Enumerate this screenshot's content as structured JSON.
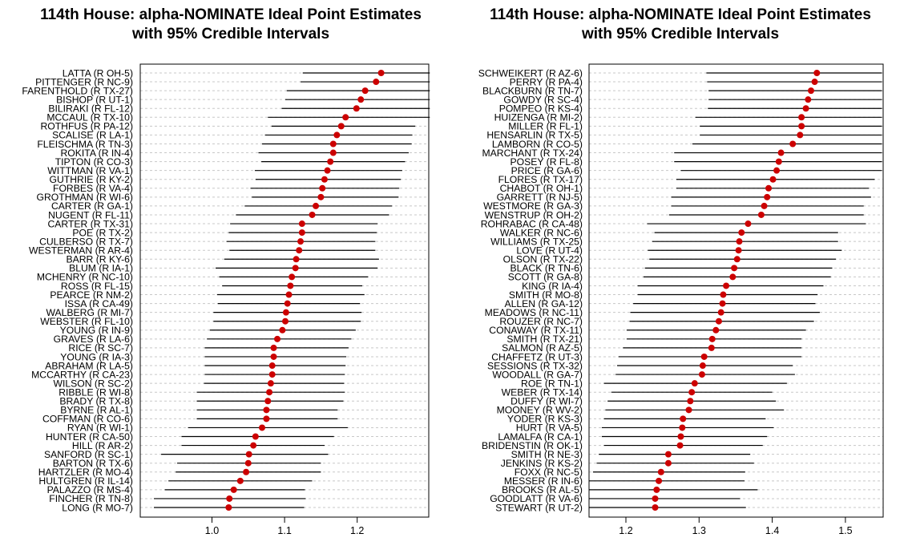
{
  "chart_data": [
    {
      "type": "scatter",
      "title": "114th House: alpha-NOMINATE Ideal Point Estimates",
      "subtitle": "with 95% Credible Intervals",
      "xlabel": "",
      "ylabel": "",
      "xlim": [
        0.9,
        1.3
      ],
      "xticks": [
        1.0,
        1.1,
        1.2
      ],
      "xtick_labels": [
        "1.0",
        "1.1",
        "1.2"
      ],
      "grid": "dashed horizontal guide lines",
      "point_color": "#cc0000",
      "interval_color": "#000000",
      "points": [
        {
          "label": "LATTA (R OH-5)",
          "est": 1.233,
          "lo": 1.125,
          "hi": 1.3
        },
        {
          "label": "PITTENGER (R NC-9)",
          "est": 1.226,
          "lo": 1.122,
          "hi": 1.3
        },
        {
          "label": "FARENTHOLD (R TX-27)",
          "est": 1.211,
          "lo": 1.103,
          "hi": 1.3
        },
        {
          "label": "BISHOP (R UT-1)",
          "est": 1.205,
          "lo": 1.101,
          "hi": 1.3
        },
        {
          "label": "BILIRAKI (R FL-12)",
          "est": 1.199,
          "lo": 1.096,
          "hi": 1.3
        },
        {
          "label": "MCCAUL (R TX-10)",
          "est": 1.184,
          "lo": 1.077,
          "hi": 1.3
        },
        {
          "label": "ROTHFUS (R PA-12)",
          "est": 1.178,
          "lo": 1.082,
          "hi": 1.28
        },
        {
          "label": "SCALISE (R LA-1)",
          "est": 1.172,
          "lo": 1.073,
          "hi": 1.276
        },
        {
          "label": "FLEISCHMA (R TN-3)",
          "est": 1.167,
          "lo": 1.069,
          "hi": 1.275
        },
        {
          "label": "ROKITA (R IN-4)",
          "est": 1.167,
          "lo": 1.064,
          "hi": 1.271
        },
        {
          "label": "TIPTON (R CO-3)",
          "est": 1.163,
          "lo": 1.068,
          "hi": 1.266
        },
        {
          "label": "WITTMAN (R VA-1)",
          "est": 1.159,
          "lo": 1.059,
          "hi": 1.262
        },
        {
          "label": "GUTHRIE (R KY-2)",
          "est": 1.155,
          "lo": 1.06,
          "hi": 1.26
        },
        {
          "label": "FORBES (R VA-4)",
          "est": 1.152,
          "lo": 1.053,
          "hi": 1.258
        },
        {
          "label": "GROTHMAN (R WI-6)",
          "est": 1.15,
          "lo": 1.055,
          "hi": 1.257
        },
        {
          "label": "CARTER (R GA-1)",
          "est": 1.143,
          "lo": 1.045,
          "hi": 1.248
        },
        {
          "label": "NUGENT (R FL-11)",
          "est": 1.138,
          "lo": 1.033,
          "hi": 1.244
        },
        {
          "label": "CARTER (R TX-31)",
          "est": 1.124,
          "lo": 1.025,
          "hi": 1.228
        },
        {
          "label": "POE (R TX-2)",
          "est": 1.124,
          "lo": 1.023,
          "hi": 1.227
        },
        {
          "label": "CULBERSO (R TX-7)",
          "est": 1.122,
          "lo": 1.02,
          "hi": 1.225
        },
        {
          "label": "WESTERMAN (R AR-4)",
          "est": 1.12,
          "lo": 1.024,
          "hi": 1.225
        },
        {
          "label": "BARR (R KY-6)",
          "est": 1.116,
          "lo": 1.017,
          "hi": 1.23
        },
        {
          "label": "BLUM (R IA-1)",
          "est": 1.115,
          "lo": 1.005,
          "hi": 1.228
        },
        {
          "label": "MCHENRY (R NC-10)",
          "est": 1.11,
          "lo": 1.01,
          "hi": 1.215
        },
        {
          "label": "ROSS (R FL-15)",
          "est": 1.108,
          "lo": 1.014,
          "hi": 1.207
        },
        {
          "label": "PEARCE (R NM-2)",
          "est": 1.106,
          "lo": 1.007,
          "hi": 1.21
        },
        {
          "label": "ISSA (R CA-49)",
          "est": 1.104,
          "lo": 1.008,
          "hi": 1.204
        },
        {
          "label": "WALBERG (R MI-7)",
          "est": 1.102,
          "lo": 1.002,
          "hi": 1.206
        },
        {
          "label": "WEBSTER (R FL-10)",
          "est": 1.101,
          "lo": 1.002,
          "hi": 1.205
        },
        {
          "label": "YOUNG (R IN-9)",
          "est": 1.097,
          "lo": 0.997,
          "hi": 1.198
        },
        {
          "label": "GRAVES (R LA-6)",
          "est": 1.09,
          "lo": 0.993,
          "hi": 1.192
        },
        {
          "label": "RICE (R SC-7)",
          "est": 1.085,
          "lo": 0.99,
          "hi": 1.188
        },
        {
          "label": "YOUNG (R IA-3)",
          "est": 1.085,
          "lo": 0.99,
          "hi": 1.185
        },
        {
          "label": "ABRAHAM (R LA-5)",
          "est": 1.083,
          "lo": 0.99,
          "hi": 1.184
        },
        {
          "label": "MCCARTHY (R CA-23)",
          "est": 1.083,
          "lo": 0.99,
          "hi": 1.183
        },
        {
          "label": "WILSON (R SC-2)",
          "est": 1.081,
          "lo": 0.989,
          "hi": 1.182
        },
        {
          "label": "RIBBLE (R WI-8)",
          "est": 1.079,
          "lo": 0.979,
          "hi": 1.183
        },
        {
          "label": "BRADY (R TX-8)",
          "est": 1.077,
          "lo": 0.979,
          "hi": 1.181
        },
        {
          "label": "BYRNE (R AL-1)",
          "est": 1.075,
          "lo": 0.979,
          "hi": 1.173
        },
        {
          "label": "COFFMAN (R CO-6)",
          "est": 1.075,
          "lo": 0.979,
          "hi": 1.173
        },
        {
          "label": "RYAN (R WI-1)",
          "est": 1.069,
          "lo": 0.967,
          "hi": 1.187
        },
        {
          "label": "HUNTER (R CA-50)",
          "est": 1.06,
          "lo": 0.958,
          "hi": 1.168
        },
        {
          "label": "HILL (R AR-2)",
          "est": 1.057,
          "lo": 0.958,
          "hi": 1.155
        },
        {
          "label": "SANFORD (R SC-1)",
          "est": 1.051,
          "lo": 0.93,
          "hi": 1.16
        },
        {
          "label": "BARTON (R TX-6)",
          "est": 1.05,
          "lo": 0.952,
          "hi": 1.15
        },
        {
          "label": "HARTZLER (R MO-4)",
          "est": 1.047,
          "lo": 0.95,
          "hi": 1.15
        },
        {
          "label": "HULTGREN (R IL-14)",
          "est": 1.039,
          "lo": 0.94,
          "hi": 1.138
        },
        {
          "label": "PALAZZO (R MS-4)",
          "est": 1.03,
          "lo": 0.935,
          "hi": 1.128
        },
        {
          "label": "FINCHER (R TN-8)",
          "est": 1.024,
          "lo": 0.92,
          "hi": 1.129
        },
        {
          "label": "LONG (R MO-7)",
          "est": 1.023,
          "lo": 0.92,
          "hi": 1.127
        }
      ]
    },
    {
      "type": "scatter",
      "title": "114th House: alpha-NOMINATE Ideal Point Estimates",
      "subtitle": "with 95% Credible Intervals",
      "xlabel": "",
      "ylabel": "",
      "xlim": [
        1.15,
        1.55
      ],
      "xticks": [
        1.2,
        1.3,
        1.4,
        1.5
      ],
      "xtick_labels": [
        "1.2",
        "1.3",
        "1.4",
        "1.5"
      ],
      "grid": "dashed horizontal guide lines",
      "point_color": "#cc0000",
      "interval_color": "#000000",
      "points": [
        {
          "label": "SCHWEIKERT (R AZ-6)",
          "est": 1.461,
          "lo": 1.31,
          "hi": 1.55
        },
        {
          "label": "PERRY (R PA-4)",
          "est": 1.458,
          "lo": 1.311,
          "hi": 1.55
        },
        {
          "label": "BLACKBURN (R TN-7)",
          "est": 1.453,
          "lo": 1.313,
          "hi": 1.55
        },
        {
          "label": "GOWDY (R SC-4)",
          "est": 1.449,
          "lo": 1.313,
          "hi": 1.55
        },
        {
          "label": "POMPEO (R KS-4)",
          "est": 1.446,
          "lo": 1.312,
          "hi": 1.55
        },
        {
          "label": "HUIZENGA (R MI-2)",
          "est": 1.44,
          "lo": 1.295,
          "hi": 1.55
        },
        {
          "label": "MILLER (R FL-1)",
          "est": 1.44,
          "lo": 1.301,
          "hi": 1.55
        },
        {
          "label": "HENSARLIN (R TX-5)",
          "est": 1.438,
          "lo": 1.301,
          "hi": 1.55
        },
        {
          "label": "LAMBORN (R CO-5)",
          "est": 1.428,
          "lo": 1.291,
          "hi": 1.55
        },
        {
          "label": "MARCHANT (R TX-24)",
          "est": 1.412,
          "lo": 1.266,
          "hi": 1.55
        },
        {
          "label": "POSEY (R FL-8)",
          "est": 1.409,
          "lo": 1.266,
          "hi": 1.55
        },
        {
          "label": "PRICE (R GA-6)",
          "est": 1.406,
          "lo": 1.275,
          "hi": 1.55
        },
        {
          "label": "FLORES (R TX-17)",
          "est": 1.401,
          "lo": 1.269,
          "hi": 1.54
        },
        {
          "label": "CHABOT (R OH-1)",
          "est": 1.395,
          "lo": 1.269,
          "hi": 1.532
        },
        {
          "label": "GARRETT (R NJ-5)",
          "est": 1.393,
          "lo": 1.262,
          "hi": 1.535
        },
        {
          "label": "WESTMORE (R GA-3)",
          "est": 1.389,
          "lo": 1.262,
          "hi": 1.525
        },
        {
          "label": "WENSTRUP (R OH-2)",
          "est": 1.385,
          "lo": 1.259,
          "hi": 1.525
        },
        {
          "label": "ROHRABAC (R CA-48)",
          "est": 1.367,
          "lo": 1.229,
          "hi": 1.528
        },
        {
          "label": "WALKER (R NC-6)",
          "est": 1.358,
          "lo": 1.239,
          "hi": 1.49
        },
        {
          "label": "WILLIAMS (R TX-25)",
          "est": 1.355,
          "lo": 1.236,
          "hi": 1.49
        },
        {
          "label": "LOVE (R UT-4)",
          "est": 1.354,
          "lo": 1.23,
          "hi": 1.495
        },
        {
          "label": "OLSON (R TX-22)",
          "est": 1.352,
          "lo": 1.232,
          "hi": 1.487
        },
        {
          "label": "BLACK (R TN-6)",
          "est": 1.348,
          "lo": 1.226,
          "hi": 1.482
        },
        {
          "label": "SCOTT (R GA-8)",
          "est": 1.346,
          "lo": 1.224,
          "hi": 1.48
        },
        {
          "label": "KING (R IA-4)",
          "est": 1.337,
          "lo": 1.216,
          "hi": 1.47
        },
        {
          "label": "SMITH (R MO-8)",
          "est": 1.333,
          "lo": 1.216,
          "hi": 1.462
        },
        {
          "label": "ALLEN (R GA-12)",
          "est": 1.332,
          "lo": 1.21,
          "hi": 1.459
        },
        {
          "label": "MEADOWS (R NC-11)",
          "est": 1.33,
          "lo": 1.206,
          "hi": 1.465
        },
        {
          "label": "ROUZER (R NC-7)",
          "est": 1.327,
          "lo": 1.205,
          "hi": 1.457
        },
        {
          "label": "CONAWAY (R TX-11)",
          "est": 1.323,
          "lo": 1.201,
          "hi": 1.446
        },
        {
          "label": "SMITH (R TX-21)",
          "est": 1.318,
          "lo": 1.201,
          "hi": 1.44
        },
        {
          "label": "SALMON (R AZ-5)",
          "est": 1.317,
          "lo": 1.196,
          "hi": 1.44
        },
        {
          "label": "CHAFFETZ (R UT-3)",
          "est": 1.307,
          "lo": 1.19,
          "hi": 1.44
        },
        {
          "label": "SESSIONS (R TX-32)",
          "est": 1.305,
          "lo": 1.188,
          "hi": 1.428
        },
        {
          "label": "WOODALL (R GA-7)",
          "est": 1.304,
          "lo": 1.186,
          "hi": 1.431
        },
        {
          "label": "ROE (R TN-1)",
          "est": 1.294,
          "lo": 1.17,
          "hi": 1.42
        },
        {
          "label": "WEBER (R TX-14)",
          "est": 1.29,
          "lo": 1.18,
          "hi": 1.4
        },
        {
          "label": "DUFFY (R WI-7)",
          "est": 1.288,
          "lo": 1.175,
          "hi": 1.405
        },
        {
          "label": "MOONEY (R WV-2)",
          "est": 1.286,
          "lo": 1.172,
          "hi": 1.416
        },
        {
          "label": "YODER (R KS-3)",
          "est": 1.278,
          "lo": 1.17,
          "hi": 1.391
        },
        {
          "label": "HURT (R VA-5)",
          "est": 1.277,
          "lo": 1.167,
          "hi": 1.402
        },
        {
          "label": "LAMALFA (R CA-1)",
          "est": 1.275,
          "lo": 1.167,
          "hi": 1.393
        },
        {
          "label": "BRIDENSTIN (R OK-1)",
          "est": 1.274,
          "lo": 1.17,
          "hi": 1.387
        },
        {
          "label": "SMITH (R NE-3)",
          "est": 1.258,
          "lo": 1.163,
          "hi": 1.37
        },
        {
          "label": "JENKINS (R KS-2)",
          "est": 1.258,
          "lo": 1.16,
          "hi": 1.375
        },
        {
          "label": "FOXX (R NC-5)",
          "est": 1.248,
          "lo": 1.155,
          "hi": 1.363
        },
        {
          "label": "MESSER (R IN-6)",
          "est": 1.245,
          "lo": 1.146,
          "hi": 1.362
        },
        {
          "label": "BROOKS (R AL-5)",
          "est": 1.242,
          "lo": 1.14,
          "hi": 1.38
        },
        {
          "label": "GOODLATT (R VA-6)",
          "est": 1.24,
          "lo": 1.133,
          "hi": 1.356
        },
        {
          "label": "STEWART (R UT-2)",
          "est": 1.24,
          "lo": 1.13,
          "hi": 1.364
        }
      ]
    }
  ]
}
